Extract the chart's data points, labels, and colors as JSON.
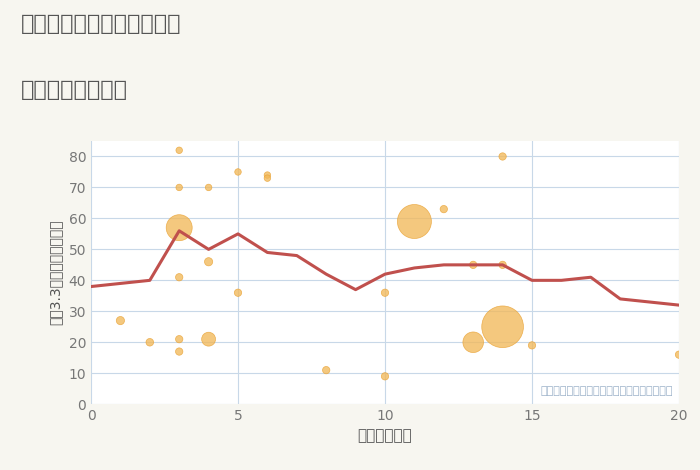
{
  "title_line1": "大阪府大阪市西成区津守の",
  "title_line2": "駅距離別土地価格",
  "xlabel": "駅距離（分）",
  "ylabel": "平（3.3㎡）単価（万円）",
  "annotation": "円の大きさは、取引のあった物件面積を示す",
  "fig_bg_color": "#f7f6f0",
  "plot_bg_color": "#ffffff",
  "grid_color": "#c8d8e8",
  "line_color": "#c0504d",
  "scatter_facecolor": "#f2b95a",
  "scatter_edgecolor": "#e8a030",
  "scatter_alpha": 0.78,
  "title_color": "#555555",
  "label_color": "#555555",
  "tick_color": "#777777",
  "annotation_color": "#9ab0c8",
  "xlim": [
    0,
    20
  ],
  "ylim": [
    0,
    85
  ],
  "xticks": [
    0,
    5,
    10,
    15,
    20
  ],
  "yticks": [
    0,
    10,
    20,
    30,
    40,
    50,
    60,
    70,
    80
  ],
  "line_x": [
    0,
    1,
    2,
    3,
    4,
    5,
    6,
    7,
    8,
    9,
    10,
    11,
    12,
    13,
    14,
    15,
    16,
    17,
    18,
    19,
    20
  ],
  "line_y": [
    38,
    39,
    40,
    56,
    50,
    55,
    49,
    48,
    42,
    37,
    42,
    44,
    45,
    45,
    45,
    40,
    40,
    41,
    34,
    33,
    32
  ],
  "scatter_x": [
    1,
    2,
    3,
    3,
    3,
    3,
    3,
    3,
    4,
    4,
    4,
    5,
    5,
    6,
    6,
    8,
    10,
    10,
    11,
    12,
    13,
    13,
    14,
    14,
    14,
    15,
    20
  ],
  "scatter_y": [
    27,
    20,
    82,
    70,
    57,
    41,
    21,
    17,
    70,
    46,
    21,
    75,
    36,
    74,
    73,
    11,
    36,
    9,
    59,
    63,
    45,
    20,
    80,
    45,
    25,
    19,
    16
  ],
  "scatter_sizes": [
    35,
    30,
    22,
    22,
    350,
    28,
    28,
    28,
    22,
    35,
    100,
    22,
    28,
    22,
    22,
    28,
    28,
    28,
    600,
    28,
    28,
    220,
    28,
    28,
    900,
    28,
    28
  ]
}
